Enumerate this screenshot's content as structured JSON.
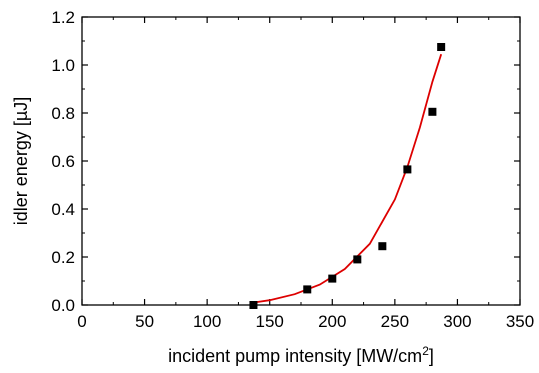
{
  "chart_data": {
    "type": "scatter",
    "title": "",
    "xlabel": "incident pump intensity [MW/cm",
    "xlabel_superscript": "2",
    "xlabel_suffix": "]",
    "ylabel": "idler energy [µJ]",
    "xlim": [
      0,
      350
    ],
    "ylim": [
      0,
      1.2
    ],
    "xticks": [
      "0",
      "50",
      "100",
      "150",
      "200",
      "250",
      "300",
      "350"
    ],
    "yticks": [
      "0.0",
      "0.2",
      "0.4",
      "0.6",
      "0.8",
      "1.0",
      "1.2"
    ],
    "grid": false,
    "series": [
      {
        "kind": "points",
        "marker": "square",
        "color": "#000000",
        "x": [
          137,
          180,
          200,
          220,
          240,
          260,
          280,
          287
        ],
        "y": [
          0.0,
          0.065,
          0.11,
          0.19,
          0.245,
          0.565,
          0.805,
          1.075
        ]
      },
      {
        "kind": "fit-line",
        "color": "#dd0000",
        "x": [
          137,
          150,
          170,
          190,
          210,
          230,
          250,
          260,
          270,
          280,
          287
        ],
        "y": [
          0.01,
          0.02,
          0.045,
          0.085,
          0.15,
          0.255,
          0.44,
          0.575,
          0.74,
          0.93,
          1.045
        ]
      }
    ]
  }
}
